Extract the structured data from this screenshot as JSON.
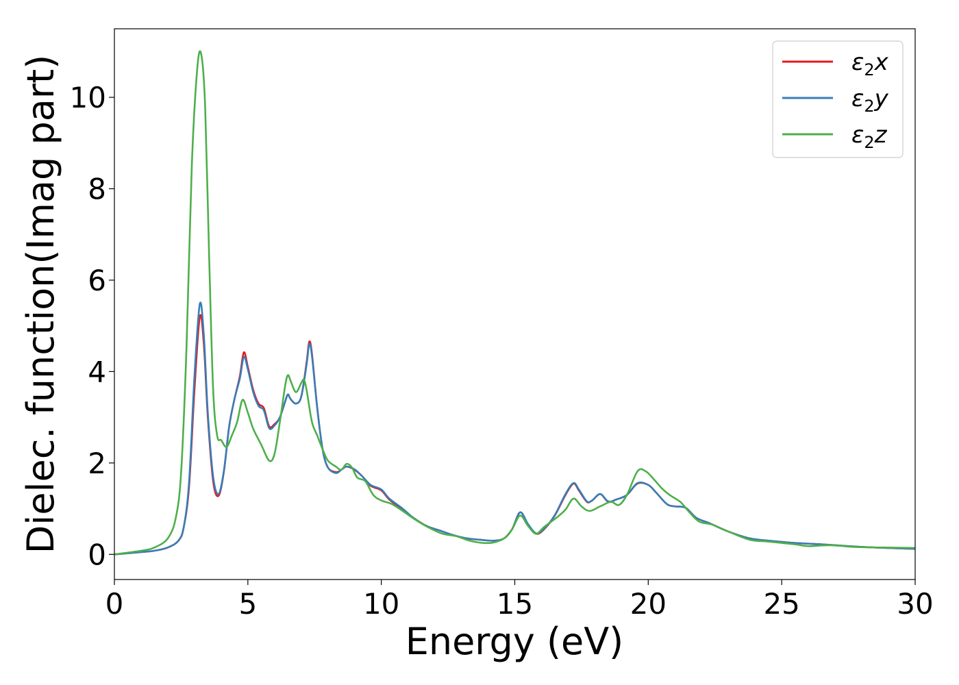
{
  "chart_data": {
    "type": "line",
    "xlabel": "Energy (eV)",
    "ylabel": "Dielec. function(Imag part)",
    "xlim": [
      0,
      30
    ],
    "ylim": [
      -0.55,
      11.5
    ],
    "xticks": [
      0,
      5,
      10,
      15,
      20,
      25,
      30
    ],
    "yticks": [
      0,
      2,
      4,
      6,
      8,
      10
    ],
    "grid": false,
    "legend_position": "top-right",
    "series": [
      {
        "name": "ε₂x",
        "legend_base": "ε",
        "legend_sub": "2",
        "legend_tail": "x",
        "color": "#e41a1c",
        "points": [
          [
            0,
            0
          ],
          [
            1,
            0.05
          ],
          [
            1.5,
            0.08
          ],
          [
            2,
            0.15
          ],
          [
            2.4,
            0.3
          ],
          [
            2.6,
            0.6
          ],
          [
            2.8,
            1.5
          ],
          [
            3.0,
            3.6
          ],
          [
            3.2,
            5.2
          ],
          [
            3.35,
            4.6
          ],
          [
            3.5,
            3.0
          ],
          [
            3.7,
            1.6
          ],
          [
            3.9,
            1.28
          ],
          [
            4.1,
            1.8
          ],
          [
            4.3,
            2.8
          ],
          [
            4.5,
            3.4
          ],
          [
            4.7,
            3.9
          ],
          [
            4.85,
            4.42
          ],
          [
            5.0,
            4.1
          ],
          [
            5.2,
            3.6
          ],
          [
            5.4,
            3.3
          ],
          [
            5.6,
            3.2
          ],
          [
            5.8,
            2.8
          ],
          [
            6.0,
            2.85
          ],
          [
            6.2,
            3.0
          ],
          [
            6.4,
            3.35
          ],
          [
            6.5,
            3.5
          ],
          [
            6.6,
            3.4
          ],
          [
            6.8,
            3.3
          ],
          [
            7.0,
            3.45
          ],
          [
            7.2,
            4.2
          ],
          [
            7.3,
            4.65
          ],
          [
            7.4,
            4.4
          ],
          [
            7.6,
            3.2
          ],
          [
            7.8,
            2.3
          ],
          [
            8.0,
            1.9
          ],
          [
            8.3,
            1.8
          ],
          [
            8.5,
            1.85
          ],
          [
            8.7,
            1.92
          ],
          [
            9.0,
            1.85
          ],
          [
            9.3,
            1.7
          ],
          [
            9.6,
            1.5
          ],
          [
            10.0,
            1.4
          ],
          [
            10.3,
            1.2
          ],
          [
            10.8,
            0.98
          ],
          [
            11.2,
            0.8
          ],
          [
            11.7,
            0.62
          ],
          [
            12.2,
            0.52
          ],
          [
            12.7,
            0.42
          ],
          [
            13.2,
            0.35
          ],
          [
            13.7,
            0.32
          ],
          [
            14.2,
            0.3
          ],
          [
            14.6,
            0.35
          ],
          [
            14.9,
            0.55
          ],
          [
            15.2,
            0.92
          ],
          [
            15.5,
            0.65
          ],
          [
            15.8,
            0.45
          ],
          [
            16.1,
            0.55
          ],
          [
            16.5,
            0.85
          ],
          [
            16.9,
            1.3
          ],
          [
            17.2,
            1.55
          ],
          [
            17.4,
            1.4
          ],
          [
            17.7,
            1.15
          ],
          [
            17.9,
            1.18
          ],
          [
            18.2,
            1.32
          ],
          [
            18.5,
            1.15
          ],
          [
            18.8,
            1.2
          ],
          [
            19.2,
            1.3
          ],
          [
            19.6,
            1.55
          ],
          [
            20.0,
            1.52
          ],
          [
            20.3,
            1.35
          ],
          [
            20.7,
            1.1
          ],
          [
            21.0,
            1.05
          ],
          [
            21.4,
            1.02
          ],
          [
            21.8,
            0.8
          ],
          [
            22.3,
            0.68
          ],
          [
            23.0,
            0.5
          ],
          [
            23.8,
            0.35
          ],
          [
            24.5,
            0.3
          ],
          [
            25.5,
            0.25
          ],
          [
            26.5,
            0.22
          ],
          [
            27.5,
            0.18
          ],
          [
            28.5,
            0.15
          ],
          [
            30,
            0.12
          ]
        ]
      },
      {
        "name": "ε₂y",
        "legend_base": "ε",
        "legend_sub": "2",
        "legend_tail": "y",
        "color": "#377eb8",
        "points": [
          [
            0,
            0
          ],
          [
            1,
            0.05
          ],
          [
            1.5,
            0.08
          ],
          [
            2,
            0.15
          ],
          [
            2.4,
            0.3
          ],
          [
            2.6,
            0.6
          ],
          [
            2.8,
            1.6
          ],
          [
            3.0,
            3.9
          ],
          [
            3.2,
            5.48
          ],
          [
            3.35,
            4.8
          ],
          [
            3.5,
            3.1
          ],
          [
            3.7,
            1.7
          ],
          [
            3.9,
            1.32
          ],
          [
            4.1,
            1.82
          ],
          [
            4.3,
            2.8
          ],
          [
            4.5,
            3.4
          ],
          [
            4.7,
            3.85
          ],
          [
            4.85,
            4.32
          ],
          [
            5.0,
            4.05
          ],
          [
            5.2,
            3.55
          ],
          [
            5.4,
            3.25
          ],
          [
            5.6,
            3.15
          ],
          [
            5.8,
            2.76
          ],
          [
            6.0,
            2.82
          ],
          [
            6.2,
            3.0
          ],
          [
            6.4,
            3.35
          ],
          [
            6.5,
            3.5
          ],
          [
            6.6,
            3.4
          ],
          [
            6.8,
            3.3
          ],
          [
            7.0,
            3.45
          ],
          [
            7.2,
            4.15
          ],
          [
            7.3,
            4.6
          ],
          [
            7.4,
            4.35
          ],
          [
            7.6,
            3.2
          ],
          [
            7.8,
            2.3
          ],
          [
            8.0,
            1.9
          ],
          [
            8.3,
            1.78
          ],
          [
            8.5,
            1.85
          ],
          [
            8.7,
            1.92
          ],
          [
            9.0,
            1.86
          ],
          [
            9.3,
            1.7
          ],
          [
            9.6,
            1.52
          ],
          [
            10.0,
            1.42
          ],
          [
            10.3,
            1.22
          ],
          [
            10.8,
            1.0
          ],
          [
            11.2,
            0.8
          ],
          [
            11.7,
            0.62
          ],
          [
            12.2,
            0.52
          ],
          [
            12.7,
            0.42
          ],
          [
            13.2,
            0.35
          ],
          [
            13.7,
            0.32
          ],
          [
            14.2,
            0.3
          ],
          [
            14.6,
            0.35
          ],
          [
            14.9,
            0.55
          ],
          [
            15.2,
            0.92
          ],
          [
            15.5,
            0.66
          ],
          [
            15.8,
            0.46
          ],
          [
            16.1,
            0.56
          ],
          [
            16.5,
            0.86
          ],
          [
            16.9,
            1.32
          ],
          [
            17.2,
            1.56
          ],
          [
            17.4,
            1.42
          ],
          [
            17.7,
            1.16
          ],
          [
            17.9,
            1.18
          ],
          [
            18.2,
            1.32
          ],
          [
            18.5,
            1.16
          ],
          [
            18.8,
            1.2
          ],
          [
            19.2,
            1.3
          ],
          [
            19.6,
            1.56
          ],
          [
            20.0,
            1.52
          ],
          [
            20.3,
            1.35
          ],
          [
            20.7,
            1.1
          ],
          [
            21.0,
            1.05
          ],
          [
            21.4,
            1.02
          ],
          [
            21.8,
            0.8
          ],
          [
            22.3,
            0.68
          ],
          [
            23.0,
            0.5
          ],
          [
            23.8,
            0.35
          ],
          [
            24.5,
            0.3
          ],
          [
            25.5,
            0.25
          ],
          [
            26.5,
            0.22
          ],
          [
            27.5,
            0.18
          ],
          [
            28.5,
            0.15
          ],
          [
            30,
            0.12
          ]
        ]
      },
      {
        "name": "ε₂z",
        "legend_base": "ε",
        "legend_sub": "2",
        "legend_tail": "z",
        "color": "#4daf4a",
        "points": [
          [
            0,
            0
          ],
          [
            1,
            0.08
          ],
          [
            1.5,
            0.15
          ],
          [
            2,
            0.35
          ],
          [
            2.3,
            0.8
          ],
          [
            2.5,
            1.8
          ],
          [
            2.7,
            4.5
          ],
          [
            2.9,
            8.5
          ],
          [
            3.1,
            10.6
          ],
          [
            3.25,
            10.95
          ],
          [
            3.4,
            9.8
          ],
          [
            3.55,
            6.5
          ],
          [
            3.7,
            3.6
          ],
          [
            3.85,
            2.6
          ],
          [
            4.0,
            2.5
          ],
          [
            4.2,
            2.35
          ],
          [
            4.4,
            2.6
          ],
          [
            4.6,
            2.9
          ],
          [
            4.8,
            3.38
          ],
          [
            5.0,
            3.1
          ],
          [
            5.2,
            2.75
          ],
          [
            5.5,
            2.4
          ],
          [
            5.8,
            2.05
          ],
          [
            6.0,
            2.2
          ],
          [
            6.2,
            2.9
          ],
          [
            6.4,
            3.7
          ],
          [
            6.5,
            3.92
          ],
          [
            6.6,
            3.8
          ],
          [
            6.8,
            3.55
          ],
          [
            7.0,
            3.75
          ],
          [
            7.1,
            3.82
          ],
          [
            7.2,
            3.6
          ],
          [
            7.4,
            2.9
          ],
          [
            7.6,
            2.6
          ],
          [
            7.8,
            2.3
          ],
          [
            8.0,
            2.05
          ],
          [
            8.3,
            1.92
          ],
          [
            8.5,
            1.85
          ],
          [
            8.7,
            1.98
          ],
          [
            8.9,
            1.9
          ],
          [
            9.1,
            1.68
          ],
          [
            9.4,
            1.6
          ],
          [
            9.7,
            1.3
          ],
          [
            10.0,
            1.18
          ],
          [
            10.4,
            1.1
          ],
          [
            10.8,
            0.95
          ],
          [
            11.3,
            0.75
          ],
          [
            11.8,
            0.58
          ],
          [
            12.3,
            0.45
          ],
          [
            12.8,
            0.4
          ],
          [
            13.3,
            0.3
          ],
          [
            13.8,
            0.25
          ],
          [
            14.2,
            0.26
          ],
          [
            14.6,
            0.35
          ],
          [
            14.9,
            0.55
          ],
          [
            15.2,
            0.85
          ],
          [
            15.5,
            0.62
          ],
          [
            15.8,
            0.45
          ],
          [
            16.1,
            0.6
          ],
          [
            16.6,
            0.82
          ],
          [
            16.9,
            0.98
          ],
          [
            17.2,
            1.22
          ],
          [
            17.5,
            1.05
          ],
          [
            17.8,
            0.95
          ],
          [
            18.2,
            1.05
          ],
          [
            18.6,
            1.15
          ],
          [
            18.9,
            1.08
          ],
          [
            19.2,
            1.3
          ],
          [
            19.6,
            1.82
          ],
          [
            19.9,
            1.82
          ],
          [
            20.2,
            1.65
          ],
          [
            20.5,
            1.45
          ],
          [
            20.8,
            1.3
          ],
          [
            21.2,
            1.15
          ],
          [
            21.5,
            0.95
          ],
          [
            21.9,
            0.72
          ],
          [
            22.4,
            0.65
          ],
          [
            23.0,
            0.5
          ],
          [
            23.8,
            0.32
          ],
          [
            24.5,
            0.28
          ],
          [
            25.5,
            0.22
          ],
          [
            26.0,
            0.18
          ],
          [
            26.8,
            0.2
          ],
          [
            27.8,
            0.16
          ],
          [
            28.8,
            0.15
          ],
          [
            30,
            0.14
          ]
        ]
      }
    ]
  }
}
